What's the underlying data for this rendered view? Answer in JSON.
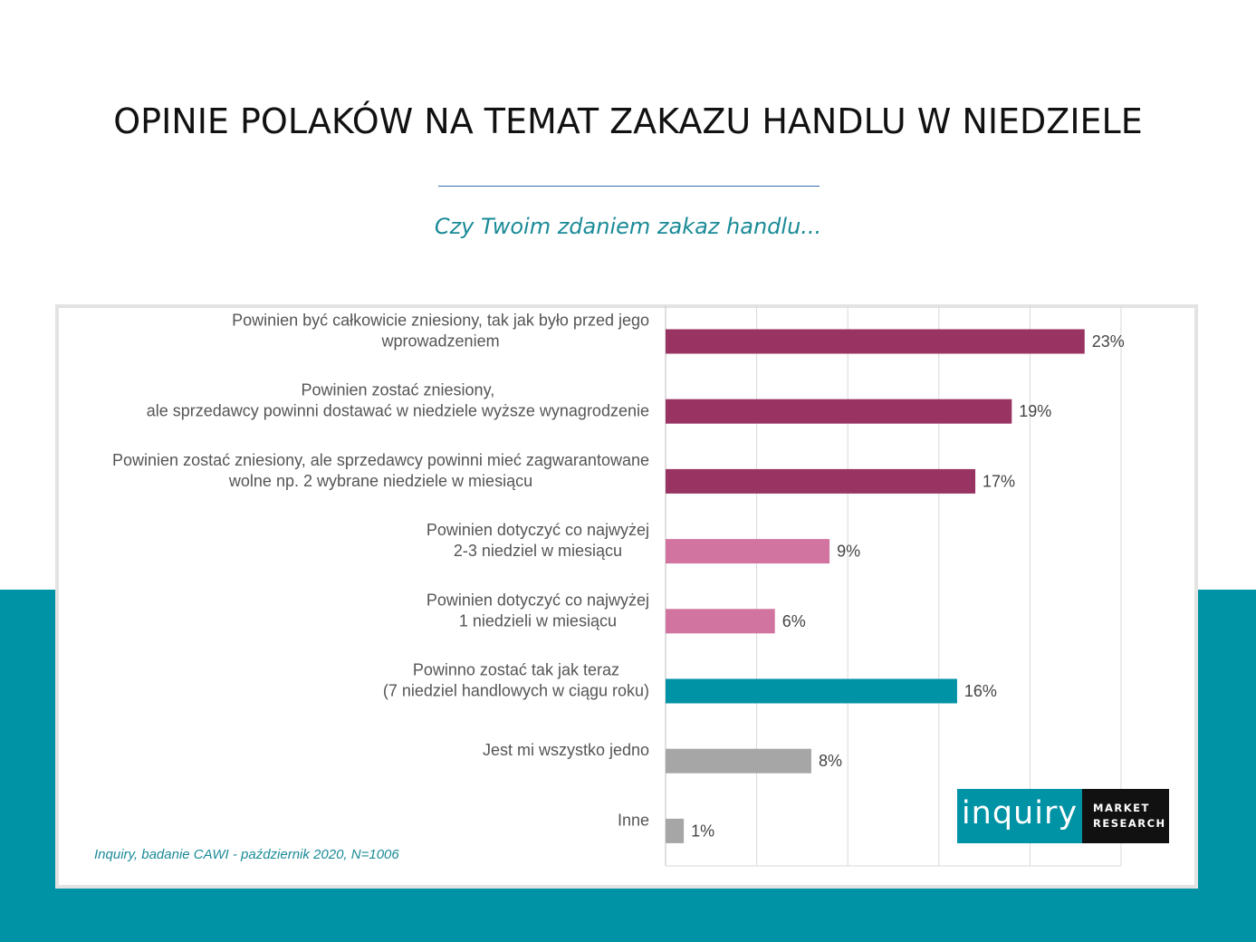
{
  "page": {
    "title": "OPINIE POLAKÓW NA TEMAT ZAKAZU HANDLU W NIEDZIELE",
    "subtitle": "Czy Twoim zdaniem zakaz handlu...",
    "source": "Inquiry, badanie CAWI - październik 2020, N=1006"
  },
  "logo": {
    "brand": "inquiry",
    "line1": "MARKET",
    "line2": "RESEARCH"
  },
  "colors": {
    "accent_teal": "#0092a5",
    "dark_plum": "#983362",
    "pink": "#d175a0",
    "teal_bar": "#0092a5",
    "gray_bar": "#a6a6a6"
  },
  "chart_data": {
    "type": "bar",
    "orientation": "horizontal",
    "title": "Czy Twoim zdaniem zakaz handlu...",
    "xlabel": "",
    "ylabel": "",
    "xlim": [
      0,
      25
    ],
    "grid": true,
    "value_suffix": "%",
    "categories": [
      [
        "Powinien być całkowicie zniesiony, tak jak było przed jego",
        "wprowadzeniem"
      ],
      [
        "Powinien zostać zniesiony,",
        "ale sprzedawcy powinni dostawać w niedziele wyższe wynagrodzenie"
      ],
      [
        "Powinien zostać zniesiony, ale sprzedawcy powinni mieć zagwarantowane",
        "wolne np. 2 wybrane niedziele w miesiącu"
      ],
      [
        "Powinien dotyczyć co najwyżej",
        "2-3 niedziel w miesiącu"
      ],
      [
        "Powinien dotyczyć co najwyżej",
        "1 niedzieli w miesiącu"
      ],
      [
        "Powinno zostać tak jak teraz",
        "(7 niedziel handlowych w ciągu roku)"
      ],
      [
        "Jest mi wszystko jedno"
      ],
      [
        "Inne"
      ]
    ],
    "values": [
      23,
      19,
      17,
      9,
      6,
      16,
      8,
      1
    ],
    "value_labels": [
      "23%",
      "19%",
      "17%",
      "9%",
      "6%",
      "16%",
      "8%",
      "1%"
    ],
    "bar_colors": [
      "#983362",
      "#983362",
      "#983362",
      "#d175a0",
      "#d175a0",
      "#0092a5",
      "#a6a6a6",
      "#a6a6a6"
    ]
  }
}
